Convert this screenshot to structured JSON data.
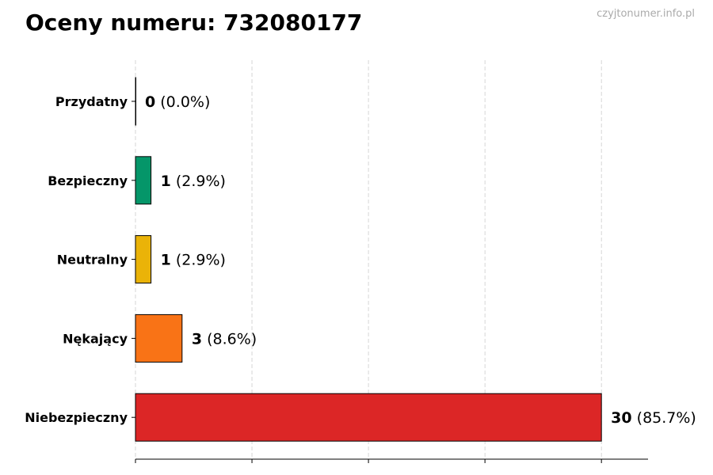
{
  "chart_data": {
    "type": "bar",
    "orientation": "horizontal",
    "title": "Oceny numeru: 732080177",
    "watermark": "czyjtonumer.info.pl",
    "categories": [
      "Przydatny",
      "Bezpieczny",
      "Neutralny",
      "Nękający",
      "Niebezpieczny"
    ],
    "values": [
      0,
      1,
      1,
      3,
      30
    ],
    "data_labels": [
      "(0.0%)",
      "(2.9%)",
      "(2.9%)",
      "(8.6%)",
      "(85.7%)"
    ],
    "colors": [
      "#6b7280",
      "#059669",
      "#eab308",
      "#f97316",
      "#dc2626"
    ],
    "xlim": [
      0,
      33
    ],
    "xticks": [
      0,
      7.5,
      15,
      22.5,
      30
    ],
    "xtick_labels_shown": false,
    "grid": "vertical dashed",
    "xlabel": "",
    "ylabel": ""
  }
}
